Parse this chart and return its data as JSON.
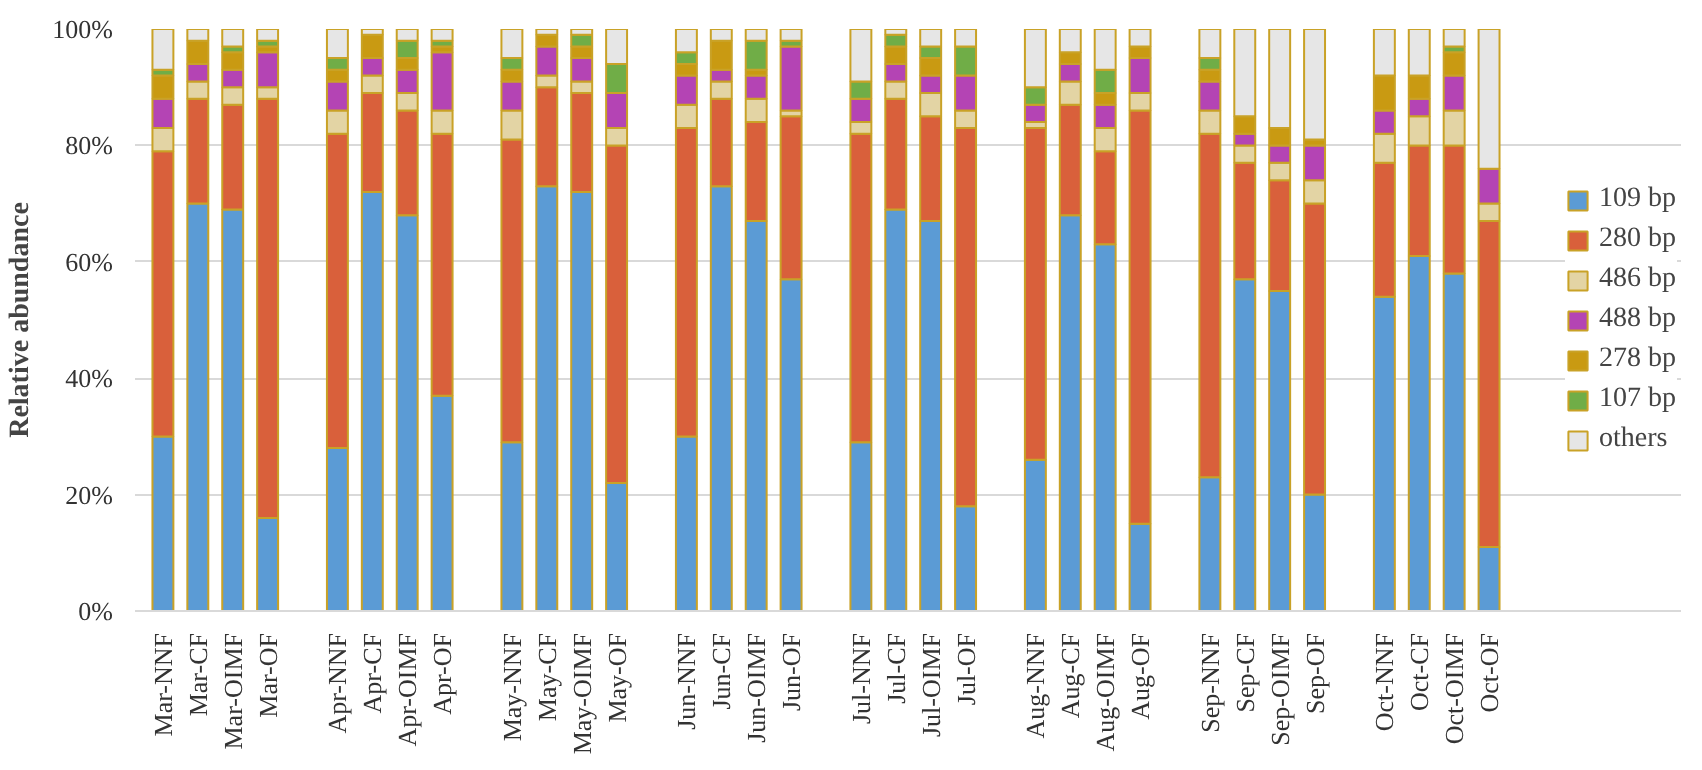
{
  "chart_data": {
    "type": "bar",
    "stacked": true,
    "ylabel": "Relative abundance",
    "categories": [
      "Mar-NNF",
      "Mar-CF",
      "Mar-OIMF",
      "Mar-OF",
      "Apr-NNF",
      "Apr-CF",
      "Apr-OIMF",
      "Apr-OF",
      "May-NNF",
      "May-CF",
      "May-OIMF",
      "May-OF",
      "Jun-NNF",
      "Jun-CF",
      "Jun-OIMF",
      "Jun-OF",
      "Jul-NNF",
      "Jul-CF",
      "Jul-OIMF",
      "Jul-OF",
      "Aug-NNF",
      "Aug-CF",
      "Aug-OIMF",
      "Aug-OF",
      "Sep-NNF",
      "Sep-CF",
      "Sep-OIMF",
      "Sep-OF",
      "Oct-NNF",
      "Oct-CF",
      "Oct-OIMF",
      "Oct-OF"
    ],
    "series": [
      {
        "name": "109 bp",
        "color": "#5b9bd5",
        "values": [
          30,
          70,
          69,
          16,
          28,
          72,
          68,
          37,
          29,
          73,
          72,
          22,
          30,
          73,
          67,
          57,
          29,
          69,
          67,
          18,
          26,
          68,
          63,
          15,
          23,
          57,
          55,
          20,
          54,
          61,
          58,
          11
        ]
      },
      {
        "name": "280 bp",
        "color": "#d9603b",
        "values": [
          49,
          18,
          18,
          72,
          54,
          17,
          18,
          45,
          52,
          17,
          17,
          58,
          53,
          15,
          17,
          28,
          53,
          19,
          18,
          65,
          57,
          19,
          16,
          71,
          59,
          20,
          19,
          50,
          23,
          19,
          22,
          56
        ]
      },
      {
        "name": "486 bp",
        "color": "#e3d4a4",
        "values": [
          4,
          3,
          3,
          2,
          4,
          3,
          3,
          4,
          5,
          2,
          2,
          3,
          4,
          3,
          4,
          1,
          2,
          3,
          4,
          3,
          1,
          4,
          4,
          3,
          4,
          3,
          3,
          4,
          5,
          5,
          6,
          3
        ]
      },
      {
        "name": "488 bp",
        "color": "#b444b4",
        "values": [
          5,
          3,
          3,
          6,
          5,
          3,
          4,
          10,
          5,
          5,
          4,
          6,
          5,
          2,
          4,
          11,
          4,
          3,
          3,
          6,
          3,
          3,
          4,
          6,
          5,
          2,
          3,
          6,
          4,
          3,
          6,
          6
        ]
      },
      {
        "name": "278 bp",
        "color": "#c99a12",
        "values": [
          4,
          4,
          3,
          1,
          2,
          4,
          2,
          1,
          2,
          2,
          2,
          0,
          2,
          5,
          1,
          0,
          0,
          3,
          3,
          0,
          0,
          2,
          2,
          2,
          2,
          3,
          3,
          1,
          6,
          4,
          4,
          0
        ]
      },
      {
        "name": "107 bp",
        "color": "#70ad47",
        "values": [
          1,
          0,
          1,
          1,
          2,
          0,
          3,
          1,
          2,
          0,
          2,
          5,
          2,
          0,
          5,
          1,
          3,
          2,
          2,
          5,
          3,
          0,
          4,
          0,
          2,
          0,
          0,
          0,
          0,
          0,
          1,
          0
        ]
      },
      {
        "name": "others",
        "color": "#e6e6e6",
        "values": [
          7,
          2,
          3,
          2,
          5,
          1,
          2,
          2,
          5,
          1,
          1,
          6,
          4,
          2,
          2,
          2,
          9,
          1,
          3,
          3,
          10,
          4,
          7,
          3,
          5,
          15,
          17,
          19,
          8,
          8,
          3,
          24
        ]
      }
    ],
    "ylim": [
      0,
      100
    ],
    "yticks": [
      {
        "value": 0,
        "label": "0%"
      },
      {
        "value": 20,
        "label": "20%"
      },
      {
        "value": 40,
        "label": "40%"
      },
      {
        "value": 60,
        "label": "60%"
      },
      {
        "value": 80,
        "label": "80%"
      },
      {
        "value": 100,
        "label": "100%"
      }
    ],
    "grid": "y",
    "legend": "right"
  }
}
